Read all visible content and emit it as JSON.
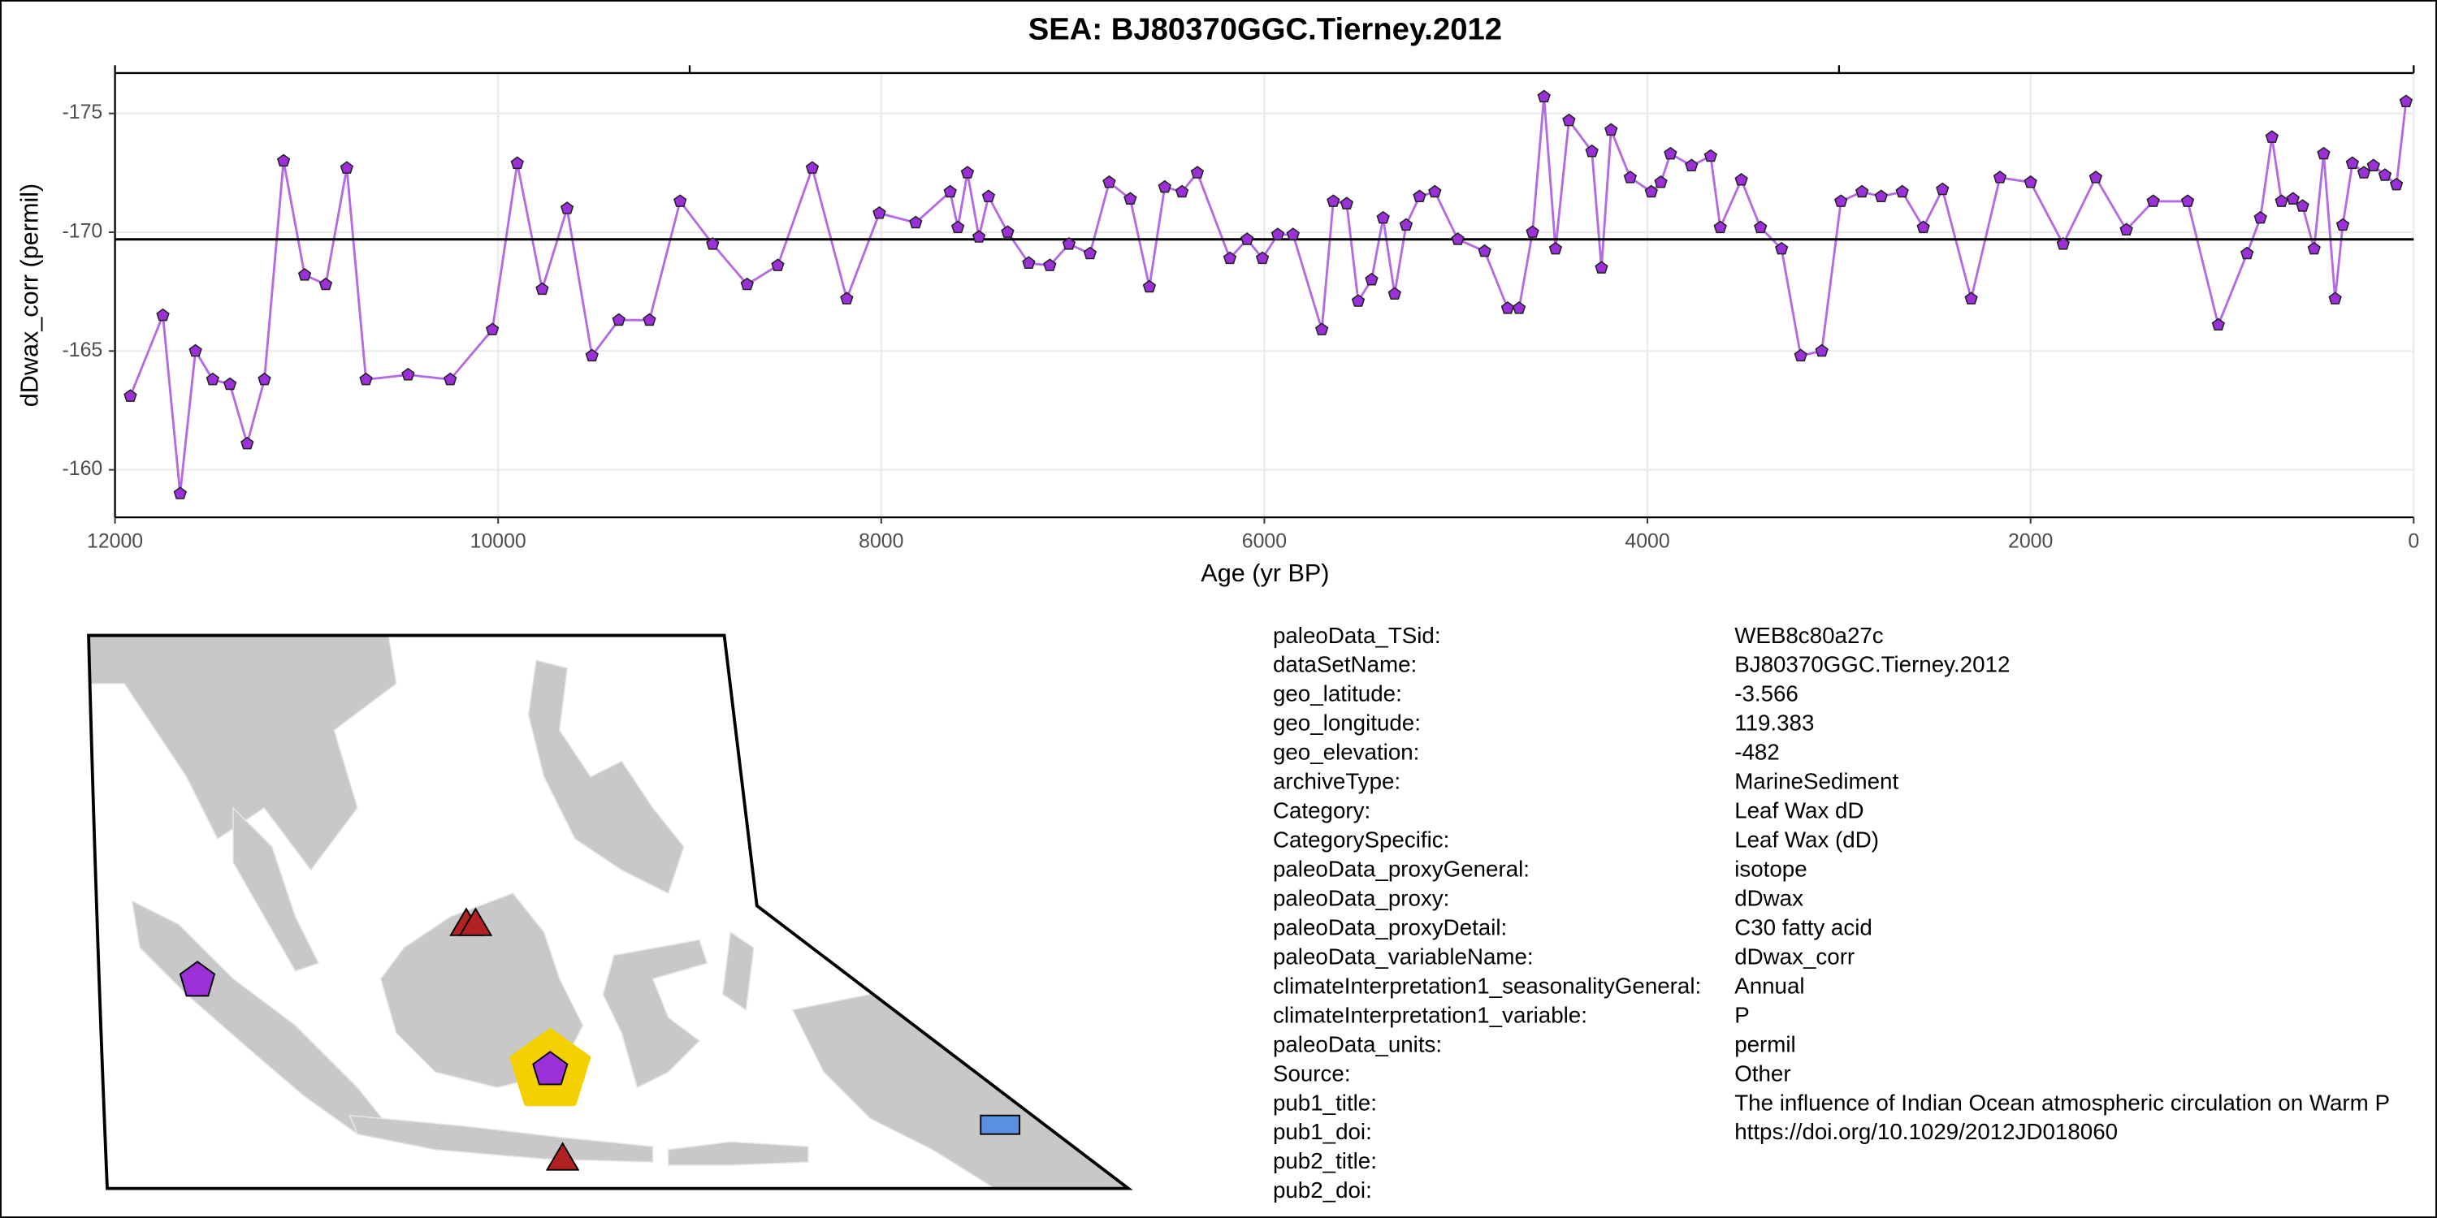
{
  "chart_data": {
    "type": "line",
    "title": "SEA: BJ80370GGC.Tierney.2012",
    "xlabel": "Age (yr BP)",
    "ylabel": "dDwax_corr (permil)",
    "xlim": [
      12000,
      0
    ],
    "xticks": [
      12000,
      10000,
      8000,
      6000,
      4000,
      2000,
      0
    ],
    "top_ticks": [
      12000,
      9000,
      3000,
      0
    ],
    "ylim": [
      -158.0,
      -176.7
    ],
    "yticks": [
      -175,
      -170,
      -165,
      -160
    ],
    "grid": true,
    "hline": -169.7,
    "color": "#b36ae2",
    "marker_color": "#9b30d9",
    "x": [
      11920,
      11750,
      11660,
      11580,
      11490,
      11400,
      11310,
      11220,
      11120,
      11010,
      10900,
      10790,
      10690,
      10470,
      10250,
      10030,
      9900,
      9770,
      9640,
      9510,
      9370,
      9210,
      9050,
      8880,
      8700,
      8540,
      8360,
      8180,
      8010,
      7820,
      7640,
      7600,
      7550,
      7490,
      7440,
      7340,
      7230,
      7120,
      7020,
      6910,
      6810,
      6700,
      6600,
      6520,
      6430,
      6350,
      6180,
      6090,
      6010,
      5930,
      5850,
      5700,
      5640,
      5570,
      5510,
      5440,
      5380,
      5320,
      5260,
      5190,
      5110,
      4990,
      4850,
      4730,
      4670,
      4600,
      4540,
      4480,
      4410,
      4290,
      4240,
      4190,
      4090,
      3980,
      3930,
      3880,
      3770,
      3670,
      3620,
      3510,
      3410,
      3300,
      3200,
      3090,
      2990,
      2880,
      2780,
      2670,
      2560,
      2460,
      2310,
      2160,
      2000,
      1830,
      1660,
      1500,
      1360,
      1180,
      1020,
      870,
      800,
      740,
      690,
      630,
      580,
      520,
      470,
      410,
      370,
      320,
      260,
      210,
      150,
      90,
      40
    ],
    "y": [
      -163.1,
      -166.5,
      -159.0,
      -165.0,
      -163.8,
      -163.6,
      -161.1,
      -163.8,
      -173.0,
      -168.2,
      -167.8,
      -172.7,
      -163.8,
      -164.0,
      -163.8,
      -165.9,
      -172.9,
      -167.6,
      -171.0,
      -164.8,
      -166.3,
      -166.3,
      -171.3,
      -169.5,
      -167.8,
      -168.6,
      -172.7,
      -167.2,
      -170.8,
      -170.4,
      -171.7,
      -170.2,
      -172.5,
      -169.8,
      -171.5,
      -170.0,
      -168.7,
      -168.6,
      -169.5,
      -169.1,
      -172.1,
      -171.4,
      -167.7,
      -171.9,
      -171.7,
      -172.5,
      -168.9,
      -169.7,
      -168.9,
      -169.9,
      -169.9,
      -165.9,
      -171.3,
      -171.2,
      -167.1,
      -168.0,
      -170.6,
      -167.4,
      -170.3,
      -171.5,
      -171.7,
      -169.7,
      -169.2,
      -166.8,
      -166.8,
      -170.0,
      -175.7,
      -169.3,
      -174.7,
      -173.4,
      -168.5,
      -174.3,
      -172.3,
      -171.7,
      -172.1,
      -173.3,
      -172.8,
      -173.2,
      -170.2,
      -172.2,
      -170.2,
      -169.3,
      -164.8,
      -165.0,
      -171.3,
      -171.7,
      -171.5,
      -171.7,
      -170.2,
      -171.8,
      -167.2,
      -172.3,
      -172.1,
      -169.5,
      -172.3,
      -170.1,
      -171.3,
      -171.3,
      -166.1,
      -169.1,
      -170.6,
      -174.0,
      -171.3,
      -171.4,
      -171.1,
      -169.3,
      -173.3,
      -167.2,
      -170.3,
      -172.9,
      -172.5,
      -172.8,
      -172.4,
      -172.0,
      -175.5
    ]
  },
  "metadata": {
    "rows": [
      [
        "paleoData_TSid:",
        "WEB8c80a27c"
      ],
      [
        "dataSetName:",
        "BJ80370GGC.Tierney.2012"
      ],
      [
        "geo_latitude:",
        "-3.566"
      ],
      [
        "geo_longitude:",
        "119.383"
      ],
      [
        "geo_elevation:",
        "-482"
      ],
      [
        "archiveType:",
        "MarineSediment"
      ],
      [
        "Category:",
        "Leaf Wax dD"
      ],
      [
        "CategorySpecific:",
        "Leaf Wax (dD)"
      ],
      [
        "paleoData_proxyGeneral:",
        "isotope"
      ],
      [
        "paleoData_proxy:",
        "dDwax"
      ],
      [
        "paleoData_proxyDetail:",
        "C30 fatty acid"
      ],
      [
        "paleoData_variableName:",
        "dDwax_corr"
      ],
      [
        "climateInterpretation1_seasonalityGeneral:",
        "Annual"
      ],
      [
        "climateInterpretation1_variable:",
        "P"
      ],
      [
        "paleoData_units:",
        "permil"
      ],
      [
        "Source:",
        "Other"
      ],
      [
        "pub1_title:",
        "The influence of Indian Ocean atmospheric circulation on Warm P"
      ],
      [
        "pub1_doi:",
        "https://doi.org/10.1029/2012JD018060"
      ],
      [
        "pub2_title:"
      ],
      [
        "pub2_doi:"
      ]
    ]
  }
}
